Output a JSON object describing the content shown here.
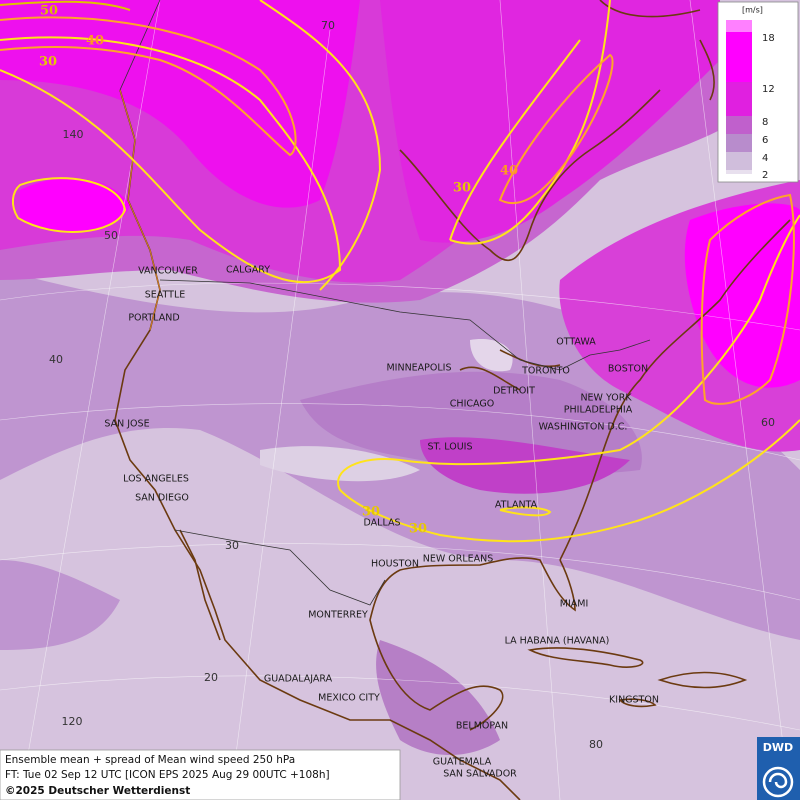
{
  "legend": {
    "unit": "[m/s]",
    "ticks": [
      18,
      12,
      8,
      6,
      4,
      2
    ]
  },
  "contour_labels": [
    "50",
    "40",
    "30",
    "30",
    "40",
    "30",
    "30"
  ],
  "grid_labels": [
    "70",
    "140",
    "50",
    "40",
    "60",
    "30",
    "20",
    "120",
    "80"
  ],
  "cities": [
    "VANCOUVER",
    "CALGARY",
    "SEATTLE",
    "PORTLAND",
    "MINNEAPOLIS",
    "TORONTO",
    "OTTAWA",
    "DETROIT",
    "CHICAGO",
    "BOSTON",
    "NEW YORK",
    "PHILADELPHIA",
    "WASHINGTON D.C.",
    "ST. LOUIS",
    "SAN JOSE",
    "LOS ANGELES",
    "SAN DIEGO",
    "ATLANTA",
    "DALLAS",
    "HOUSTON",
    "NEW ORLEANS",
    "MIAMI",
    "MONTERREY",
    "LA HABANA (HAVANA)",
    "GUADALAJARA",
    "MEXICO CITY",
    "KINGSTON",
    "BELMOPAN",
    "GUATEMALA",
    "SAN SALVADOR"
  ],
  "footer": {
    "line1": "Ensemble mean + spread of Mean wind speed 250 hPa",
    "line2": "FT: Tue 02 Sep 12 UTC [ICON EPS 2025 Aug 29 00UTC +108h]",
    "line3": "©2025 Deutscher Wetterdienst"
  },
  "logo": "DWD"
}
